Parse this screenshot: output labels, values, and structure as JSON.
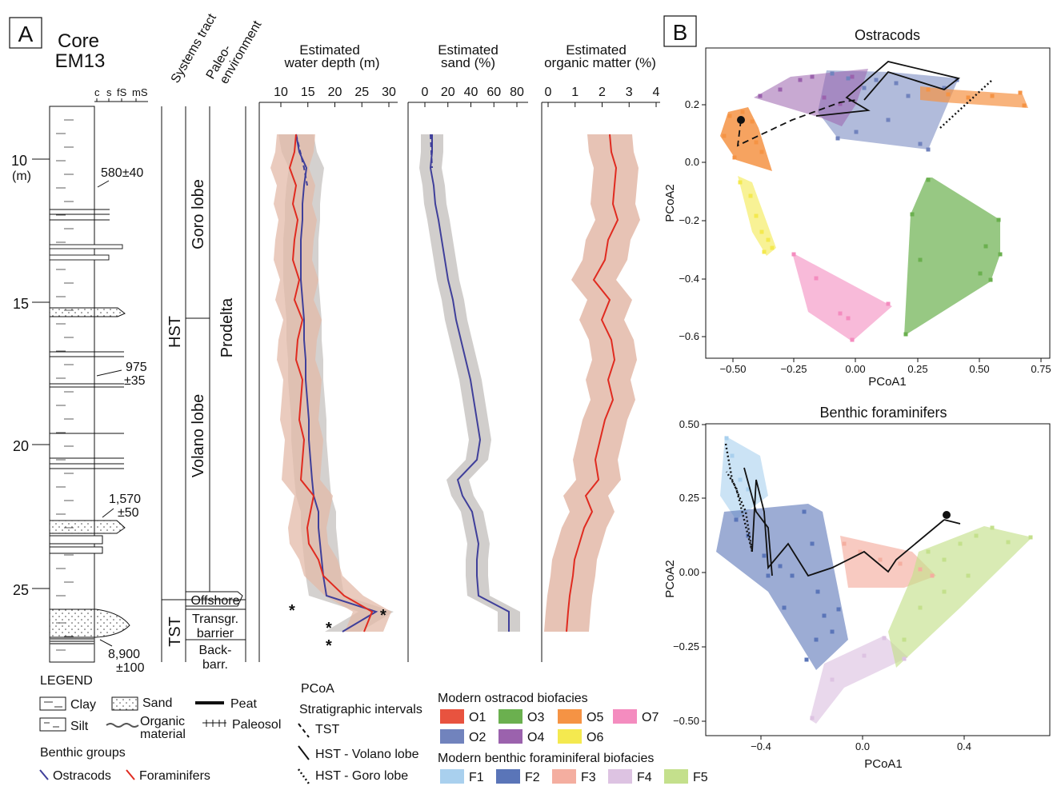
{
  "panel_a": {
    "label": "A",
    "core_title_1": "Core",
    "core_title_2": "EM13",
    "grain_labels": [
      "c",
      "s",
      "fS",
      "mS"
    ],
    "depth_unit": "(m)",
    "depth_ticks": [
      "10",
      "15",
      "20",
      "25"
    ],
    "dates": [
      "580±40",
      "975",
      "±35",
      "1,570",
      "±50",
      "8,900",
      "±100"
    ],
    "col_systems_tract": "Systems tract",
    "col_paleo_1": "Paleo-",
    "col_paleo_2": "environment",
    "tracts": [
      "HST",
      "TST"
    ],
    "lobes": [
      "Goro lobe",
      "Volano lobe"
    ],
    "environments": [
      "Prodelta",
      "Offshore",
      "Transgr.",
      "barrier",
      "Back-",
      "barr."
    ],
    "water_depth": {
      "title_1": "Estimated",
      "title_2": "water depth (m)",
      "ticks": [
        "10",
        "15",
        "20",
        "25",
        "30"
      ]
    },
    "sand": {
      "title_1": "Estimated",
      "title_2": "sand (%)",
      "ticks": [
        "0",
        "20",
        "40",
        "60",
        "80"
      ]
    },
    "organic": {
      "title_1": "Estimated",
      "title_2": "organic matter (%)",
      "ticks": [
        "0",
        "1",
        "2",
        "3",
        "4"
      ]
    }
  },
  "legend": {
    "title": "LEGEND",
    "lith": [
      "Clay",
      "Sand",
      "Peat",
      "Silt",
      "Organic",
      "material",
      "Paleosol"
    ],
    "benthic_title": "Benthic groups",
    "benthic": [
      "Ostracods",
      "Foraminifers"
    ],
    "pcoa_title": "PCoA",
    "strat_title": "Stratigraphic intervals",
    "strat": [
      "TST",
      "HST - Volano lobe",
      "HST - Goro lobe"
    ],
    "ostracod_title": "Modern ostracod biofacies",
    "ostracod": [
      {
        "code": "O1",
        "color": "#e8533f"
      },
      {
        "code": "O3",
        "color": "#6bb04f"
      },
      {
        "code": "O5",
        "color": "#f59344"
      },
      {
        "code": "O7",
        "color": "#f48cbf"
      },
      {
        "code": "O2",
        "color": "#7183bd"
      },
      {
        "code": "O4",
        "color": "#9b62ad"
      },
      {
        "code": "O6",
        "color": "#f4e94f"
      }
    ],
    "foram_title": "Modern benthic foraminiferal biofacies",
    "foram": [
      {
        "code": "F1",
        "color": "#a9d0ee"
      },
      {
        "code": "F2",
        "color": "#5a75b8"
      },
      {
        "code": "F3",
        "color": "#f4aea0"
      },
      {
        "code": "F4",
        "color": "#ddc3e2"
      },
      {
        "code": "F5",
        "color": "#c4e08c"
      }
    ]
  },
  "panel_b": {
    "label": "B",
    "plots": [
      {
        "title": "Ostracods",
        "xlabel": "PCoA1",
        "ylabel": "PCoA2",
        "xticks": [
          "−0.50",
          "−0.25",
          "0.00",
          "0.25",
          "0.50",
          "0.75"
        ],
        "yticks": [
          "0.2",
          "0.0",
          "−0.2",
          "−0.4",
          "−0.6"
        ]
      },
      {
        "title": "Benthic foraminifers",
        "xlabel": "PCoA1",
        "ylabel": "PCoA2",
        "xticks": [
          "−0.4",
          "0.0",
          "0.4"
        ],
        "yticks": [
          "0.50",
          "0.25",
          "0.00",
          "−0.25",
          "−0.50"
        ]
      }
    ]
  },
  "colors": {
    "ostracod_line": "#3f3f9a",
    "foram_line": "#e02b20",
    "ostracod_band": "#c9c6c3",
    "foram_band": "#e3b9a8"
  }
}
